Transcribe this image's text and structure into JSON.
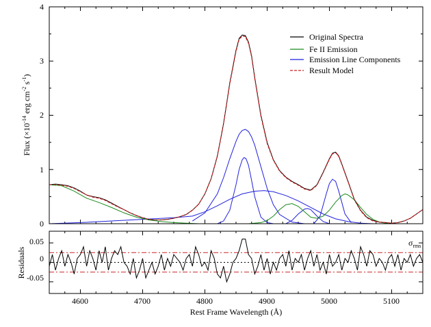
{
  "chart_data": [
    {
      "type": "line",
      "panel": "main",
      "xlim": [
        4550,
        5150
      ],
      "ylim": [
        0,
        4
      ],
      "ylabel": "Flux (×10⁻¹⁴ erg cm⁻² s⁻¹)",
      "ylabel_main": "Flux (×10",
      "ylabel_exp1": "-14",
      "ylabel_mid": " erg cm",
      "ylabel_exp2": "-2",
      "ylabel_s": " s",
      "ylabel_exp3": "-1",
      "ylabel_close": ")",
      "yticks": [
        "0",
        "1",
        "2",
        "3",
        "4"
      ],
      "legend_position": "top-right",
      "series": [
        {
          "name": "Original Spectra",
          "color": "#000000",
          "style": "solid",
          "x": [
            4550,
            4560,
            4570,
            4580,
            4590,
            4600,
            4610,
            4620,
            4630,
            4640,
            4650,
            4660,
            4670,
            4680,
            4690,
            4700,
            4710,
            4720,
            4730,
            4740,
            4750,
            4760,
            4770,
            4780,
            4790,
            4800,
            4810,
            4820,
            4830,
            4840,
            4850,
            4855,
            4860,
            4865,
            4870,
            4875,
            4880,
            4890,
            4900,
            4910,
            4920,
            4930,
            4940,
            4950,
            4960,
            4970,
            4980,
            4990,
            5000,
            5005,
            5010,
            5015,
            5020,
            5030,
            5040,
            5050,
            5060,
            5070,
            5080,
            5090,
            5100,
            5110,
            5120,
            5130,
            5140,
            5150
          ],
          "y": [
            0.72,
            0.73,
            0.72,
            0.7,
            0.66,
            0.6,
            0.53,
            0.5,
            0.48,
            0.44,
            0.38,
            0.32,
            0.26,
            0.2,
            0.15,
            0.11,
            0.08,
            0.07,
            0.07,
            0.08,
            0.1,
            0.13,
            0.17,
            0.25,
            0.36,
            0.55,
            0.83,
            1.25,
            1.85,
            2.6,
            3.2,
            3.42,
            3.48,
            3.47,
            3.35,
            3.1,
            2.7,
            2.0,
            1.5,
            1.18,
            0.98,
            0.86,
            0.78,
            0.72,
            0.65,
            0.62,
            0.72,
            0.95,
            1.2,
            1.3,
            1.32,
            1.25,
            1.1,
            0.78,
            0.45,
            0.25,
            0.12,
            0.06,
            0.03,
            0.02,
            0.01,
            0.02,
            0.05,
            0.1,
            0.18,
            0.26
          ]
        },
        {
          "name": "Fe II Emission",
          "color": "#1a8a1a",
          "style": "solid",
          "x": [
            4550,
            4570,
            4590,
            4610,
            4630,
            4650,
            4670,
            4690,
            4710,
            4730,
            4750,
            4770,
            4790,
            4810,
            4830,
            4850,
            4870,
            4890,
            4900,
            4910,
            4920,
            4930,
            4940,
            4950,
            4960,
            4970,
            4980,
            4990,
            5000,
            5010,
            5020,
            5025,
            5030,
            5040,
            5050,
            5060,
            5070,
            5080,
            5090,
            5100,
            5120,
            5150
          ],
          "y": [
            0.72,
            0.7,
            0.6,
            0.47,
            0.39,
            0.3,
            0.2,
            0.12,
            0.07,
            0.04,
            0.02,
            0.01,
            0.0,
            0.0,
            0.0,
            0.0,
            0.0,
            0.02,
            0.06,
            0.14,
            0.26,
            0.35,
            0.37,
            0.32,
            0.22,
            0.12,
            0.1,
            0.14,
            0.25,
            0.4,
            0.52,
            0.55,
            0.53,
            0.44,
            0.3,
            0.17,
            0.08,
            0.03,
            0.01,
            0.0,
            0.0,
            0.0
          ]
        },
        {
          "name": "Emission Line Components",
          "color": "#1f1fdd",
          "style": "solid",
          "components": [
            {
              "x": [
                4780,
                4800,
                4820,
                4830,
                4840,
                4850,
                4855,
                4860,
                4865,
                4870,
                4875,
                4880,
                4890,
                4900,
                4910,
                4920,
                4940,
                4960
              ],
              "y": [
                0.05,
                0.2,
                0.55,
                0.85,
                1.2,
                1.52,
                1.65,
                1.72,
                1.74,
                1.7,
                1.6,
                1.45,
                1.05,
                0.65,
                0.35,
                0.17,
                0.03,
                0.0
              ]
            },
            {
              "x": [
                4820,
                4830,
                4840,
                4850,
                4855,
                4860,
                4863,
                4866,
                4870,
                4875,
                4880,
                4890,
                4900,
                4910
              ],
              "y": [
                0.0,
                0.05,
                0.25,
                0.72,
                1.0,
                1.18,
                1.22,
                1.2,
                1.08,
                0.8,
                0.5,
                0.12,
                0.02,
                0.0
              ]
            },
            {
              "x": [
                4550,
                4600,
                4650,
                4700,
                4750,
                4780,
                4800,
                4820,
                4840,
                4860,
                4880,
                4895,
                4910,
                4930,
                4950,
                4970,
                4990,
                5010,
                5030,
                5050,
                5070
              ],
              "y": [
                0.0,
                0.02,
                0.05,
                0.08,
                0.11,
                0.14,
                0.22,
                0.33,
                0.45,
                0.55,
                0.6,
                0.61,
                0.59,
                0.52,
                0.42,
                0.3,
                0.18,
                0.09,
                0.04,
                0.01,
                0.0
              ]
            },
            {
              "x": [
                4930,
                4940,
                4950,
                4960,
                4965,
                4970,
                4980,
                4990,
                5000
              ],
              "y": [
                0.0,
                0.06,
                0.18,
                0.27,
                0.28,
                0.26,
                0.14,
                0.04,
                0.0
              ]
            },
            {
              "x": [
                4975,
                4985,
                4995,
                5000,
                5005,
                5010,
                5015,
                5025,
                5035
              ],
              "y": [
                0.0,
                0.14,
                0.55,
                0.74,
                0.82,
                0.78,
                0.6,
                0.18,
                0.02
              ]
            }
          ]
        },
        {
          "name": "Result Model",
          "color": "#cc2222",
          "style": "dashed",
          "x": [
            4550,
            4560,
            4570,
            4580,
            4590,
            4600,
            4610,
            4620,
            4630,
            4640,
            4650,
            4660,
            4670,
            4680,
            4690,
            4700,
            4710,
            4720,
            4730,
            4740,
            4750,
            4760,
            4770,
            4780,
            4790,
            4800,
            4810,
            4820,
            4830,
            4840,
            4850,
            4855,
            4860,
            4865,
            4870,
            4875,
            4880,
            4890,
            4900,
            4910,
            4920,
            4930,
            4940,
            4950,
            4960,
            4970,
            4980,
            4990,
            5000,
            5005,
            5010,
            5015,
            5020,
            5030,
            5040,
            5050,
            5060,
            5070,
            5080,
            5090,
            5100,
            5110,
            5120,
            5130,
            5140,
            5150
          ],
          "y": [
            0.72,
            0.72,
            0.71,
            0.69,
            0.65,
            0.59,
            0.53,
            0.49,
            0.47,
            0.43,
            0.37,
            0.31,
            0.26,
            0.2,
            0.15,
            0.11,
            0.08,
            0.07,
            0.07,
            0.08,
            0.1,
            0.13,
            0.17,
            0.25,
            0.36,
            0.55,
            0.83,
            1.24,
            1.84,
            2.58,
            3.18,
            3.4,
            3.46,
            3.45,
            3.33,
            3.08,
            2.68,
            1.98,
            1.48,
            1.17,
            0.97,
            0.85,
            0.77,
            0.71,
            0.64,
            0.61,
            0.71,
            0.94,
            1.19,
            1.29,
            1.31,
            1.24,
            1.09,
            0.77,
            0.44,
            0.24,
            0.11,
            0.05,
            0.03,
            0.02,
            0.01,
            0.02,
            0.05,
            0.1,
            0.18,
            0.26
          ]
        }
      ]
    },
    {
      "type": "line",
      "panel": "residuals",
      "xlim": [
        4550,
        5150
      ],
      "ylim": [
        -0.08,
        0.08
      ],
      "xlabel": "Rest Frame Wavelength (Å)",
      "ylabel": "Residuals",
      "xticks": [
        "4600",
        "4700",
        "4800",
        "4900",
        "5000",
        "5100"
      ],
      "yticks": [
        "-0.05",
        "0",
        "0.05"
      ],
      "sigma_label": "σ",
      "sigma_sub": "rms",
      "reference_lines": [
        {
          "value": 0.025,
          "color": "#cc2222",
          "style": "dash-dot"
        },
        {
          "value": -0.025,
          "color": "#cc2222",
          "style": "dash-dot"
        },
        {
          "value": 0.0,
          "color": "#000000",
          "style": "dotted"
        }
      ],
      "series": [
        {
          "name": "",
          "color": "#000000",
          "x": [
            4550,
            4555,
            4560,
            4565,
            4570,
            4575,
            4580,
            4585,
            4590,
            4595,
            4600,
            4605,
            4610,
            4615,
            4620,
            4625,
            4630,
            4635,
            4640,
            4645,
            4650,
            4655,
            4660,
            4665,
            4670,
            4675,
            4680,
            4685,
            4690,
            4695,
            4700,
            4705,
            4710,
            4715,
            4720,
            4725,
            4730,
            4735,
            4740,
            4745,
            4750,
            4755,
            4760,
            4765,
            4770,
            4775,
            4780,
            4785,
            4790,
            4795,
            4800,
            4805,
            4810,
            4815,
            4820,
            4825,
            4830,
            4835,
            4840,
            4845,
            4850,
            4855,
            4860,
            4865,
            4870,
            4875,
            4880,
            4885,
            4890,
            4895,
            4900,
            4905,
            4910,
            4915,
            4920,
            4925,
            4930,
            4935,
            4940,
            4945,
            4950,
            4955,
            4960,
            4965,
            4970,
            4975,
            4980,
            4985,
            4990,
            4995,
            5000,
            5005,
            5010,
            5015,
            5020,
            5025,
            5030,
            5035,
            5040,
            5045,
            5050,
            5055,
            5060,
            5065,
            5070,
            5075,
            5080,
            5085,
            5090,
            5095,
            5100,
            5105,
            5110,
            5115,
            5120,
            5125,
            5130,
            5135,
            5140,
            5145,
            5150
          ],
          "y": [
            -0.01,
            0.02,
            -0.02,
            0.01,
            0.03,
            -0.01,
            0.02,
            0.0,
            -0.03,
            0.01,
            0.02,
            0.04,
            -0.01,
            0.03,
            0.01,
            -0.02,
            0.03,
            0.0,
            0.04,
            -0.02,
            0.01,
            0.03,
            0.02,
            0.04,
            0.0,
            -0.01,
            -0.03,
            0.01,
            -0.04,
            -0.02,
            0.01,
            -0.04,
            -0.02,
            0.0,
            -0.03,
            -0.01,
            0.02,
            -0.02,
            0.01,
            -0.01,
            0.02,
            0.01,
            0.0,
            -0.02,
            0.01,
            0.02,
            -0.01,
            0.04,
            0.02,
            -0.01,
            0.0,
            -0.02,
            0.03,
            0.01,
            -0.03,
            -0.04,
            -0.01,
            -0.05,
            -0.03,
            0.0,
            0.01,
            0.03,
            0.06,
            0.06,
            0.02,
            0.01,
            -0.03,
            -0.01,
            0.02,
            -0.02,
            0.01,
            -0.03,
            0.0,
            -0.02,
            0.01,
            0.02,
            -0.01,
            0.03,
            -0.02,
            0.01,
            0.0,
            0.02,
            -0.02,
            0.01,
            0.03,
            -0.01,
            0.02,
            -0.02,
            0.0,
            -0.03,
            0.02,
            -0.01,
            0.0,
            0.02,
            -0.02,
            0.01,
            0.0,
            0.03,
            0.01,
            -0.02,
            0.04,
            0.02,
            -0.01,
            0.03,
            0.02,
            -0.01,
            0.01,
            0.0,
            -0.02,
            0.01,
            0.02,
            -0.01,
            0.02,
            -0.02,
            0.01,
            0.0,
            0.02,
            -0.01,
            0.01,
            0.02,
            0.0
          ]
        }
      ]
    }
  ]
}
